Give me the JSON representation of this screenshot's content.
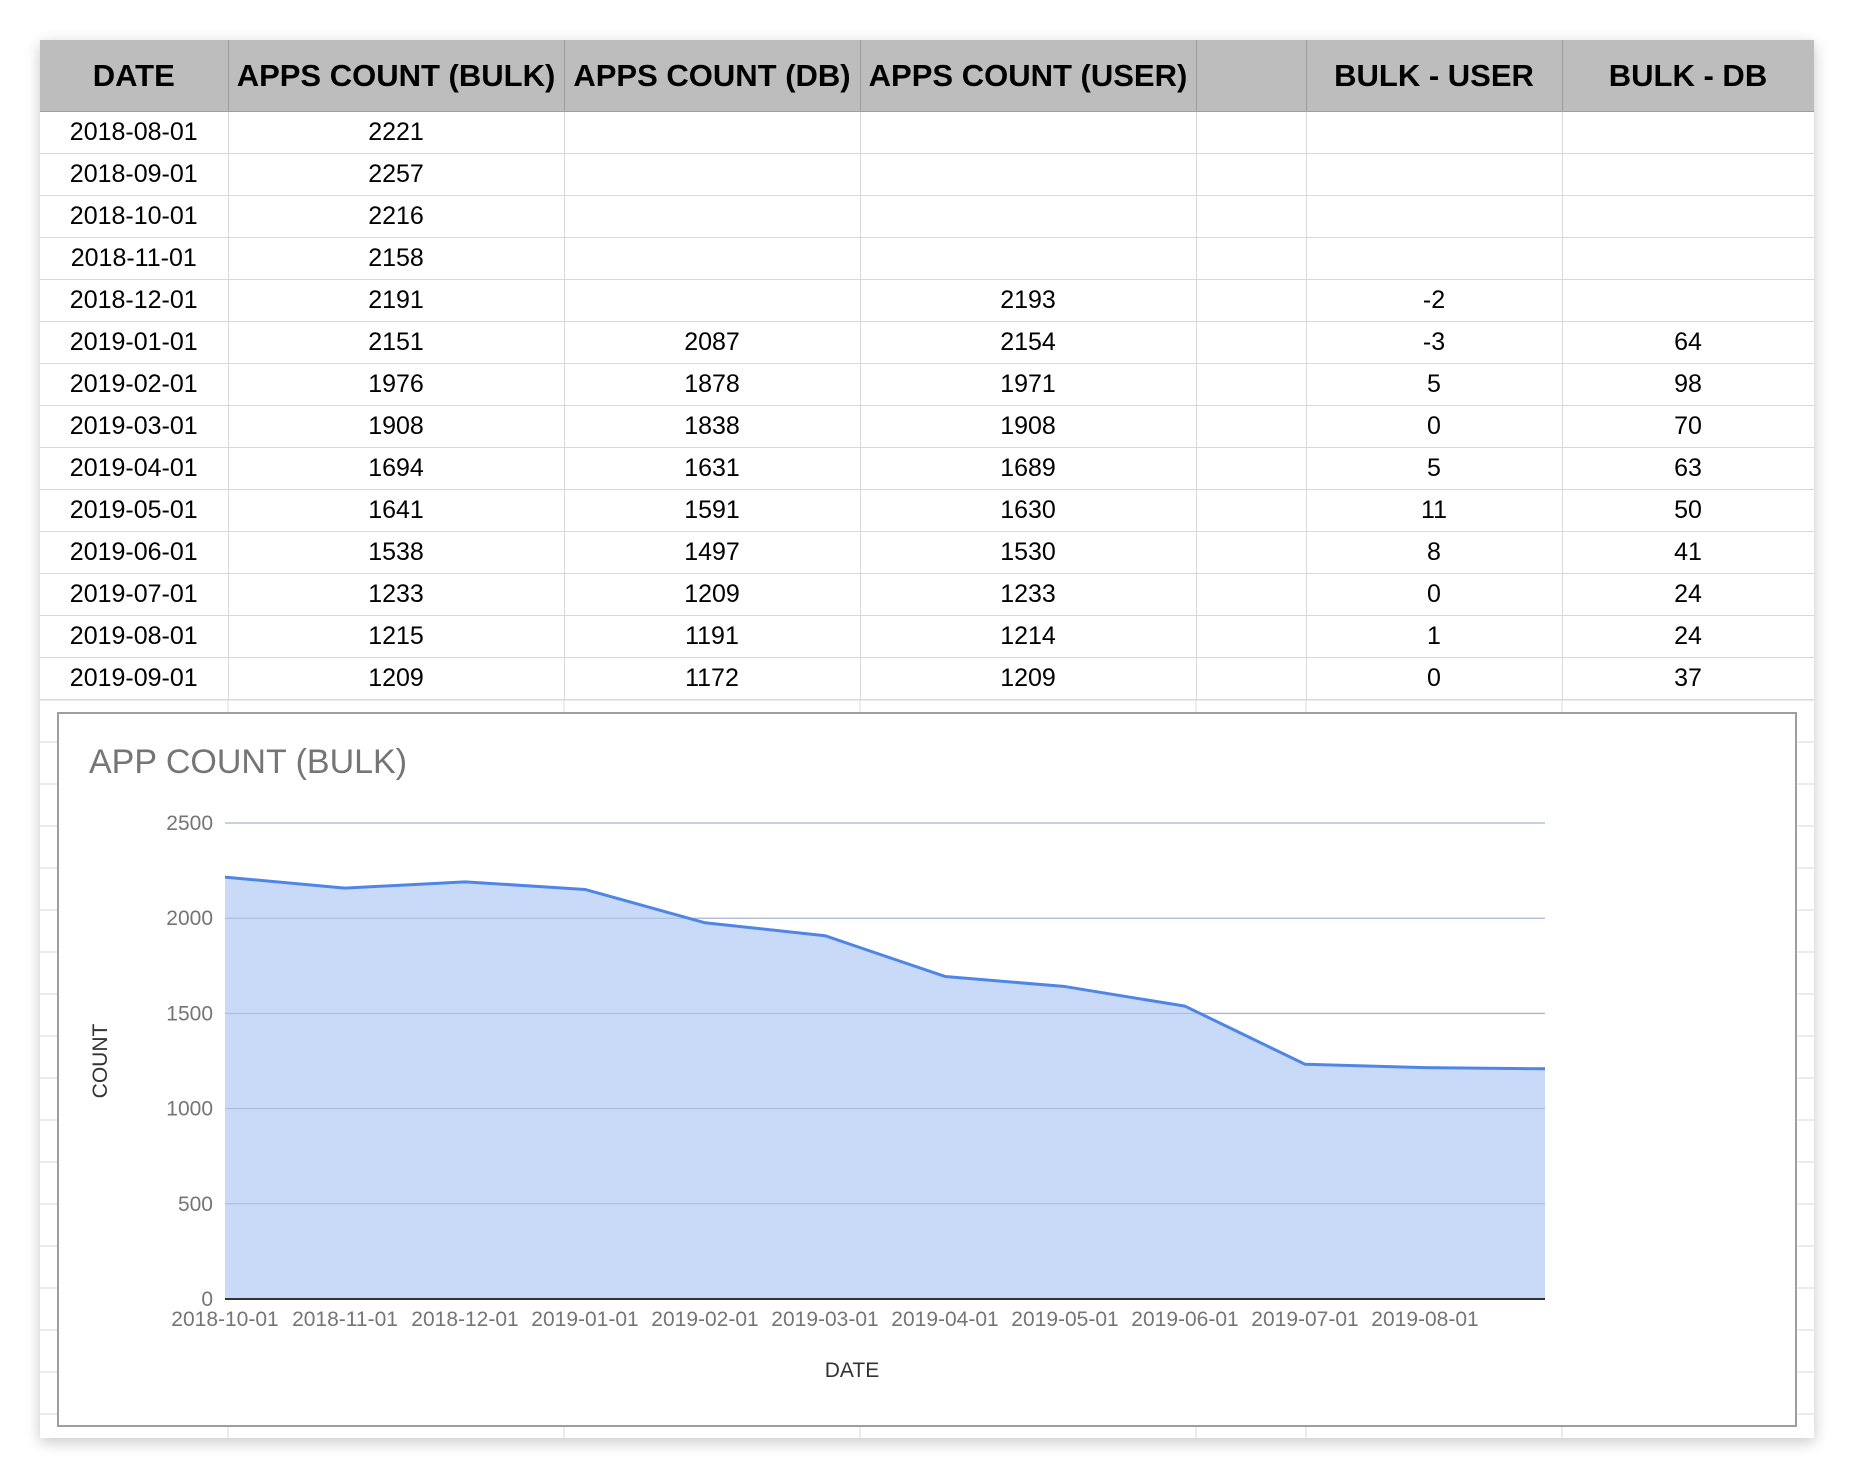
{
  "table": {
    "headers": [
      "DATE",
      "APPS COUNT (BULK)",
      "APPS COUNT (DB)",
      "APPS COUNT (USER)",
      "",
      "BULK - USER",
      "BULK - DB"
    ],
    "rows": [
      [
        "2018-08-01",
        "2221",
        "",
        "",
        "",
        "",
        ""
      ],
      [
        "2018-09-01",
        "2257",
        "",
        "",
        "",
        "",
        ""
      ],
      [
        "2018-10-01",
        "2216",
        "",
        "",
        "",
        "",
        ""
      ],
      [
        "2018-11-01",
        "2158",
        "",
        "",
        "",
        "",
        ""
      ],
      [
        "2018-12-01",
        "2191",
        "",
        "2193",
        "",
        "-2",
        ""
      ],
      [
        "2019-01-01",
        "2151",
        "2087",
        "2154",
        "",
        "-3",
        "64"
      ],
      [
        "2019-02-01",
        "1976",
        "1878",
        "1971",
        "",
        "5",
        "98"
      ],
      [
        "2019-03-01",
        "1908",
        "1838",
        "1908",
        "",
        "0",
        "70"
      ],
      [
        "2019-04-01",
        "1694",
        "1631",
        "1689",
        "",
        "5",
        "63"
      ],
      [
        "2019-05-01",
        "1641",
        "1591",
        "1630",
        "",
        "11",
        "50"
      ],
      [
        "2019-06-01",
        "1538",
        "1497",
        "1530",
        "",
        "8",
        "41"
      ],
      [
        "2019-07-01",
        "1233",
        "1209",
        "1233",
        "",
        "0",
        "24"
      ],
      [
        "2019-08-01",
        "1215",
        "1191",
        "1214",
        "",
        "1",
        "24"
      ],
      [
        "2019-09-01",
        "1209",
        "1172",
        "1209",
        "",
        "0",
        "37"
      ]
    ]
  },
  "chart_data": {
    "type": "area",
    "title": "APP COUNT (BULK)",
    "xlabel": "DATE",
    "ylabel": "COUNT",
    "x": [
      "2018-10-01",
      "2018-11-01",
      "2018-12-01",
      "2019-01-01",
      "2019-02-01",
      "2019-03-01",
      "2019-04-01",
      "2019-05-01",
      "2019-06-01",
      "2019-07-01",
      "2019-08-01",
      "2019-09-01"
    ],
    "x_tick_labels": [
      "2018-10-01",
      "2018-11-01",
      "2018-12-01",
      "2019-01-01",
      "2019-02-01",
      "2019-03-01",
      "2019-04-01",
      "2019-05-01",
      "2019-06-01",
      "2019-07-01",
      "2019-08-01"
    ],
    "values": [
      2216,
      2158,
      2191,
      2151,
      1976,
      1908,
      1694,
      1641,
      1538,
      1233,
      1215,
      1209
    ],
    "y_ticks": [
      0,
      500,
      1000,
      1500,
      2000,
      2500
    ],
    "ylim": [
      0,
      2500
    ],
    "grid": true,
    "legend": "none",
    "colors": {
      "line": "#4f86e6",
      "fill": "#c9daf8",
      "gridline": "#cccccc",
      "axis": "#333333"
    }
  }
}
